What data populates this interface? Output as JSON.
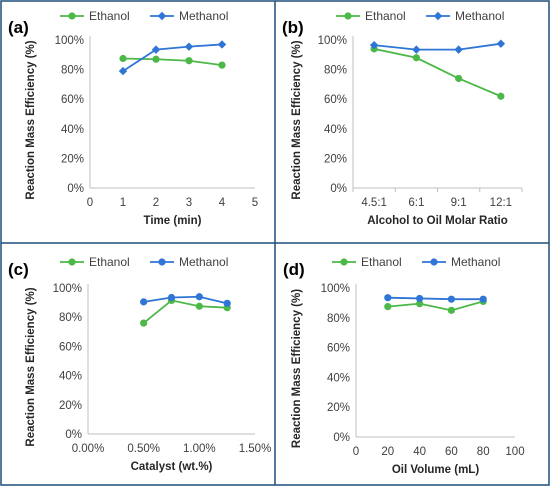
{
  "figure": {
    "border_color": "#1f4e79",
    "panel_labels": [
      "(a)",
      "(b)",
      "(c)",
      "(d)"
    ]
  },
  "colors": {
    "ethanol": "#4cb848",
    "methanol": "#2e75d6",
    "axis": "#bfbfbf",
    "text": "#404040"
  },
  "chart_data": [
    {
      "panel": "(a)",
      "type": "line",
      "xaxis": "numeric",
      "xlabel": "Time (min)",
      "ylabel": "Reaction Mass Efficiency (%)",
      "xlim": [
        0,
        5
      ],
      "xticks": [
        "0",
        "1",
        "2",
        "3",
        "4",
        "5"
      ],
      "ylim": [
        0,
        100
      ],
      "yticks": [
        "0%",
        "20%",
        "40%",
        "60%",
        "80%",
        "100%"
      ],
      "legend": "top",
      "grid": false,
      "series": [
        {
          "name": "Ethanol",
          "marker": "circle",
          "x": [
            1,
            2,
            3,
            4
          ],
          "y": [
            87.5,
            87,
            86,
            83
          ]
        },
        {
          "name": "Methanol",
          "marker": "diamond",
          "x": [
            1,
            2,
            3,
            4
          ],
          "y": [
            79,
            93.5,
            95.5,
            97
          ]
        }
      ]
    },
    {
      "panel": "(b)",
      "type": "line",
      "xaxis": "category",
      "xlabel": "Alcohol to Oil Molar Ratio",
      "ylabel": "Reaction Mass Efficiency (%)",
      "categories": [
        "4.5:1",
        "6:1",
        "9:1",
        "12:1"
      ],
      "ylim": [
        0,
        100
      ],
      "yticks": [
        "0%",
        "20%",
        "40%",
        "60%",
        "80%",
        "100%"
      ],
      "legend": "top",
      "grid": false,
      "series": [
        {
          "name": "Ethanol",
          "marker": "circle",
          "values": [
            94,
            88,
            74,
            62
          ]
        },
        {
          "name": "Methanol",
          "marker": "diamond",
          "values": [
            96.5,
            93.5,
            93.5,
            97.5
          ]
        }
      ]
    },
    {
      "panel": "(c)",
      "type": "line",
      "xaxis": "numeric",
      "xlabel": "Catalyst (wt.%)",
      "ylabel": "Reaction Mass Efficiency (%)",
      "xlim": [
        0,
        1.5
      ],
      "xticks": [
        "0.00%",
        "0.50%",
        "1.00%",
        "1.50%"
      ],
      "ylim": [
        0,
        100
      ],
      "yticks": [
        "0%",
        "20%",
        "40%",
        "60%",
        "80%",
        "100%"
      ],
      "legend": "top",
      "grid": false,
      "series": [
        {
          "name": "Ethanol",
          "marker": "circle",
          "x": [
            0.5,
            0.75,
            1.0,
            1.25
          ],
          "y": [
            76,
            91.5,
            87.5,
            86.5
          ]
        },
        {
          "name": "Methanol",
          "marker": "circle",
          "x": [
            0.5,
            0.75,
            1.0,
            1.25
          ],
          "y": [
            90.5,
            93.5,
            94,
            89.5
          ]
        }
      ]
    },
    {
      "panel": "(d)",
      "type": "line",
      "xaxis": "numeric",
      "xlabel": "Oil Volume (mL)",
      "ylabel": "Reaction Mass Efficiency (%)",
      "xlim": [
        0,
        100
      ],
      "xticks": [
        "0",
        "20",
        "40",
        "60",
        "80",
        "100"
      ],
      "ylim": [
        0,
        100
      ],
      "yticks": [
        "0%",
        "20%",
        "40%",
        "60%",
        "80%",
        "100%"
      ],
      "legend": "top",
      "grid": false,
      "series": [
        {
          "name": "Ethanol",
          "marker": "circle",
          "x": [
            20,
            40,
            60,
            80
          ],
          "y": [
            87.5,
            89.5,
            85,
            91
          ]
        },
        {
          "name": "Methanol",
          "marker": "circle",
          "x": [
            20,
            40,
            60,
            80
          ],
          "y": [
            93.5,
            93,
            92.5,
            92.5
          ]
        }
      ]
    }
  ]
}
